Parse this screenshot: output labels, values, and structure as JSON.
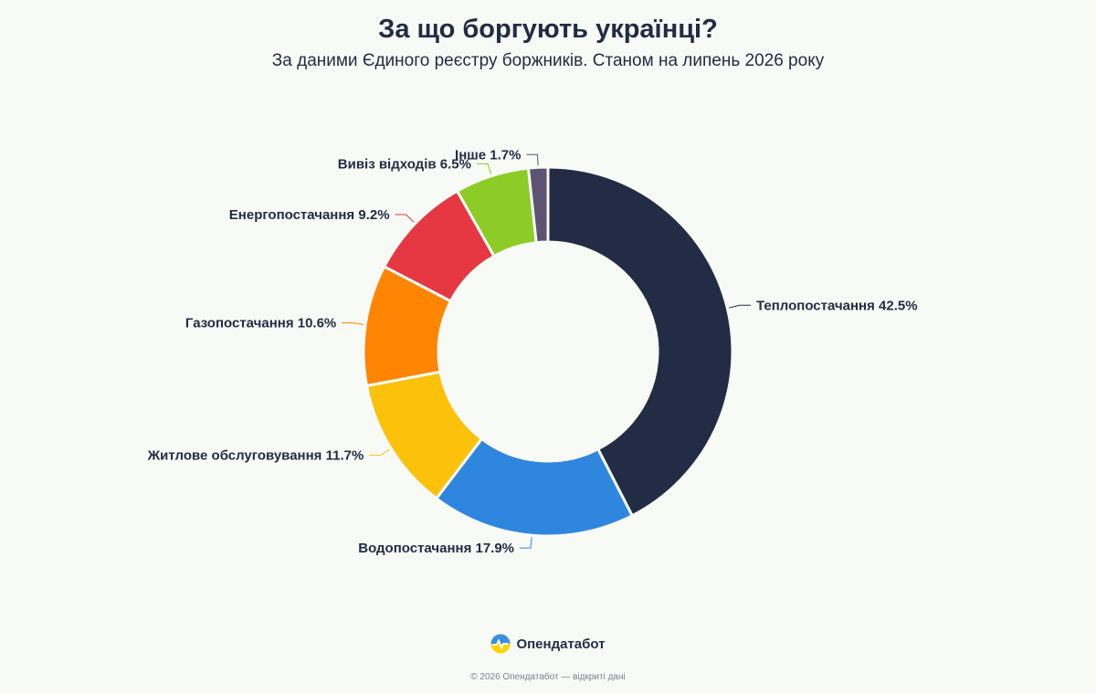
{
  "title": "За що боргують українці?",
  "subtitle": "За даними Єдиного реєстру боржників. Станом на липень 2026 року",
  "brand": {
    "name": "Опендатабот",
    "logo_icon": "opendatabot-logo-icon"
  },
  "footer": {
    "copyright": "© 2026 Опендатабот — відкриті дані"
  },
  "chart_data": {
    "type": "pie",
    "variant": "donut",
    "unit": "%",
    "slices": [
      {
        "label": "Теплопостачання",
        "value": 42.5,
        "display": "Теплопостачання 42.5%",
        "color": "#232c45"
      },
      {
        "label": "Водопостачання",
        "value": 17.9,
        "display": "Водопостачання 17.9%",
        "color": "#2f86de"
      },
      {
        "label": "Житлове обслуговування",
        "value": 11.7,
        "display": "Житлове обслуговування 11.7%",
        "color": "#fcc10b"
      },
      {
        "label": "Газопостачання",
        "value": 10.6,
        "display": "Газопостачання 10.6%",
        "color": "#ff8502"
      },
      {
        "label": "Енергопостачання",
        "value": 9.2,
        "display": "Енергопостачання 9.2%",
        "color": "#e53843"
      },
      {
        "label": "Вивіз відходів",
        "value": 6.5,
        "display": "Вивіз відходів 6.5%",
        "color": "#8dcc27"
      },
      {
        "label": "Інше",
        "value": 1.7,
        "display": "Інше 1.7%",
        "color": "#5e5373"
      }
    ]
  }
}
